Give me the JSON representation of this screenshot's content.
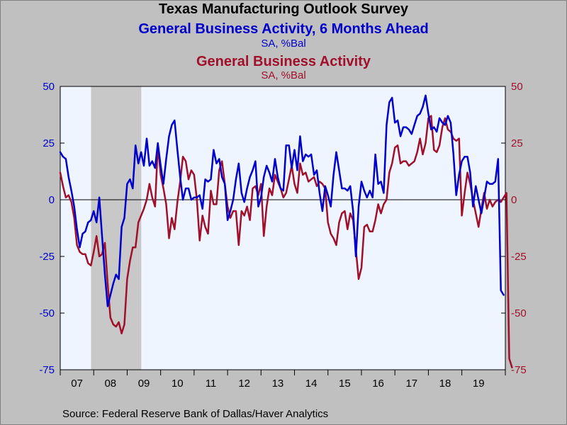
{
  "titles": {
    "main": "Texas Manufacturing Outlook Survey",
    "series1_title": "General Business Activity, 6 Months Ahead",
    "series1_unit": "SA, %Bal",
    "series2_title": "General Business Activity",
    "series2_unit": "SA, %Bal"
  },
  "source": "Source:  Federal Reserve Bank of Dallas/Haver Analytics",
  "colors": {
    "series1": "#0000cc",
    "series2": "#a0102a",
    "plot_bg": "#eef5ff",
    "recession": "#c8c8c8",
    "outer_bg": "#c0c0c0"
  },
  "chart_data": {
    "type": "line",
    "x_unit": "year",
    "x_tick_labels": [
      "07",
      "08",
      "09",
      "10",
      "11",
      "12",
      "13",
      "14",
      "15",
      "16",
      "17",
      "18",
      "19"
    ],
    "x_tick_years": [
      2007,
      2008,
      2009,
      2010,
      2011,
      2012,
      2013,
      2014,
      2015,
      2016,
      2017,
      2018,
      2019
    ],
    "xlim": [
      2007.0,
      2020.3
    ],
    "ylim": [
      -75,
      50
    ],
    "y_ticks": [
      50,
      25,
      0,
      -25,
      -50,
      -75
    ],
    "y_tick_labels_left": [
      "50",
      "25",
      "0",
      "-25",
      "-50",
      "-75"
    ],
    "y_tick_labels_right": [
      "50",
      "25",
      "0",
      "-25",
      "-50",
      "-75"
    ],
    "zero_line": true,
    "recession_shading": [
      2007.92,
      2009.42
    ],
    "series": [
      {
        "name": "General Business Activity, 6 Months Ahead",
        "axis": "left",
        "color": "#0000cc",
        "start": 2007.0,
        "step_months": 1,
        "values": [
          21,
          19,
          18,
          10,
          4,
          -3,
          -13,
          -21,
          -15,
          -14,
          -10,
          -9,
          -5,
          -10,
          1,
          -16,
          -33,
          -47,
          -42,
          -37,
          -33,
          -35,
          -12,
          -8,
          7,
          9,
          5,
          24,
          16,
          21,
          15,
          27,
          15,
          17,
          14,
          25,
          15,
          7,
          18,
          28,
          33,
          35,
          22,
          10,
          0,
          5,
          5,
          0,
          1,
          1,
          2,
          -4,
          9,
          8,
          9,
          22,
          16,
          18,
          10,
          7,
          -9,
          -5,
          0,
          9,
          16,
          3,
          -1,
          5,
          10,
          13,
          17,
          -3,
          1,
          10,
          15,
          12,
          8,
          18,
          10,
          5,
          4,
          24,
          24,
          14,
          22,
          13,
          28,
          17,
          20,
          19,
          20,
          11,
          13,
          3,
          -5,
          6,
          2,
          -3,
          11,
          21,
          13,
          5,
          5,
          4,
          6,
          -5,
          -25,
          -3,
          8,
          4,
          1,
          4,
          1,
          20,
          7,
          8,
          3,
          33,
          43,
          45,
          34,
          35,
          28,
          32,
          32,
          31,
          29,
          33,
          37,
          38,
          41,
          46,
          38,
          31,
          32,
          30,
          36,
          34,
          33,
          37,
          34,
          20,
          2,
          11,
          17,
          19,
          19,
          12,
          -3,
          6,
          0,
          -6,
          1,
          8,
          7,
          7,
          8,
          18,
          -40,
          -42
        ]
      },
      {
        "name": "General Business Activity",
        "axis": "right",
        "color": "#a0102a",
        "start": 2007.0,
        "step_months": 1,
        "values": [
          12,
          6,
          1,
          2,
          -1,
          -8,
          -20,
          -23,
          -24,
          -24,
          -28,
          -29,
          -23,
          -16,
          -25,
          -24,
          -19,
          -37,
          -52,
          -55,
          -56,
          -54,
          -59,
          -55,
          -35,
          -27,
          -21,
          -21,
          -10,
          -7,
          -4,
          0,
          7,
          1,
          -3,
          24,
          11,
          5,
          -2,
          -17,
          -8,
          -13,
          -1,
          8,
          19,
          17,
          9,
          13,
          11,
          0,
          -18,
          -7,
          -12,
          -15,
          4,
          -2,
          -2,
          13,
          17,
          7,
          -3,
          -8,
          -5,
          -5,
          -20,
          -5,
          -7,
          -3,
          -9,
          5,
          6,
          2,
          7,
          -16,
          -3,
          5,
          2,
          11,
          8,
          5,
          1,
          3,
          9,
          15,
          7,
          3,
          16,
          11,
          12,
          8,
          9,
          10,
          6,
          8,
          7,
          5,
          -10,
          -15,
          -17,
          -20,
          -10,
          -6,
          -5,
          -13,
          -6,
          -9,
          -22,
          -35,
          -30,
          -12,
          -11,
          -14,
          -14,
          -9,
          -2,
          -6,
          -2,
          0,
          12,
          16,
          23,
          24,
          16,
          17,
          17,
          15,
          16,
          17,
          21,
          27,
          20,
          25,
          36,
          37,
          22,
          21,
          24,
          32,
          36,
          31,
          30,
          27,
          26,
          27,
          -7,
          3,
          12,
          7,
          0,
          -6,
          -12,
          -4,
          3,
          -4,
          0,
          -3,
          -1,
          0,
          -1,
          1,
          3,
          -70,
          -74
        ]
      }
    ]
  }
}
